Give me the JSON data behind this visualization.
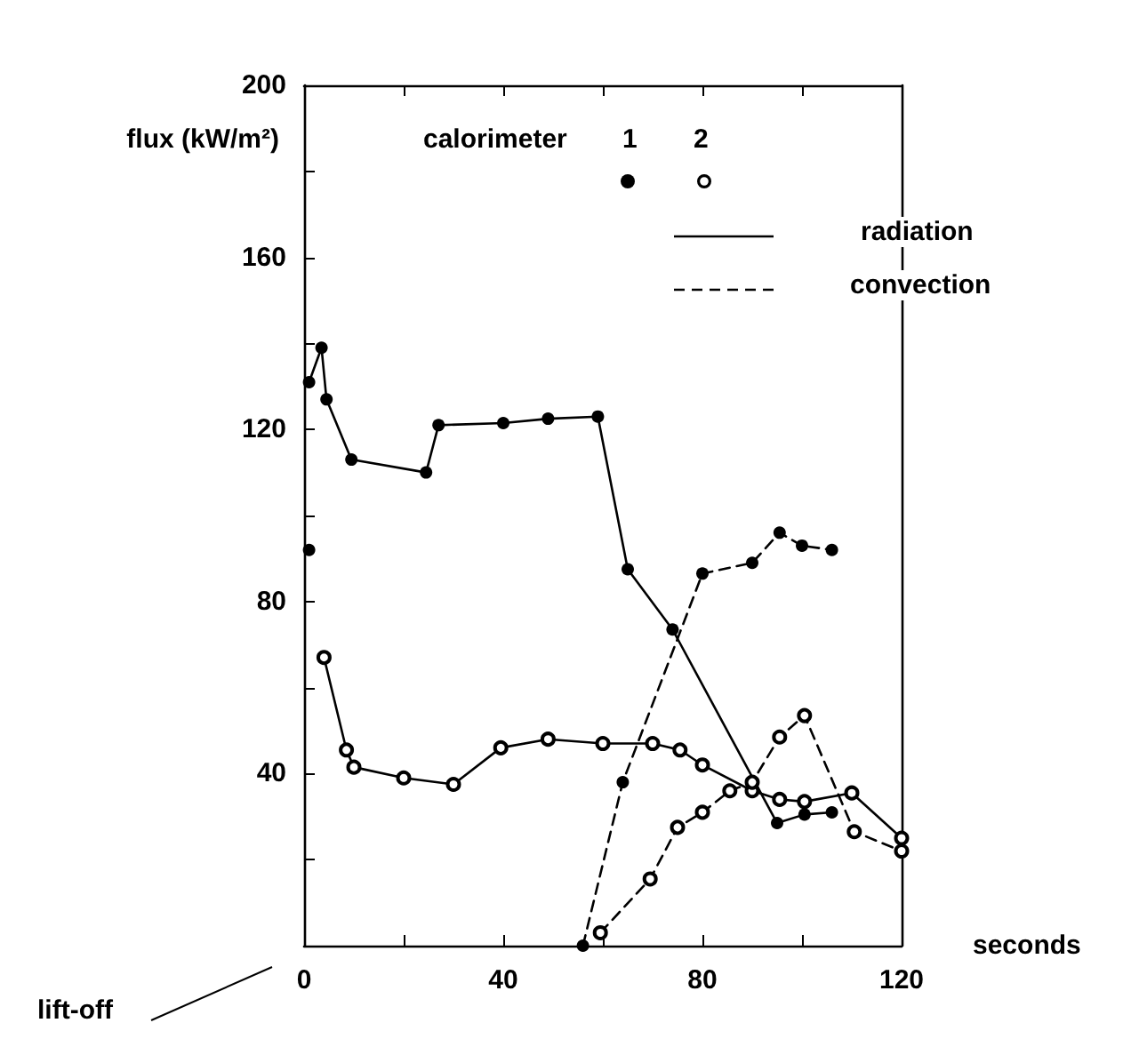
{
  "chart_data": {
    "type": "line",
    "xlabel": "seconds",
    "ylabel": "flux (kW/m²)",
    "legend_title": "calorimeter",
    "xlim": [
      0,
      120
    ],
    "ylim": [
      0,
      200
    ],
    "xticks": [
      0,
      {
        "value": 20,
        "label": null
      },
      40,
      {
        "value": 60,
        "label": null
      },
      80,
      {
        "value": 100,
        "label": null
      },
      120
    ],
    "yticks": [
      {
        "value": 20,
        "label": null
      },
      40,
      {
        "value": 60,
        "label": null
      },
      80,
      {
        "value": 100,
        "label": null
      },
      120,
      {
        "value": 140,
        "label": null
      },
      160,
      {
        "value": 180,
        "label": null
      },
      200
    ],
    "marker": "circle",
    "annotations": [
      "1",
      "2",
      "radiation",
      "convection",
      "lift-off"
    ],
    "series": [
      {
        "color": "#000000",
        "line_style": "solid",
        "x": [
          1,
          3.5,
          4.5,
          9.5,
          24.5,
          27,
          40,
          49,
          59,
          65,
          74,
          95,
          100.5,
          106
        ],
        "values": [
          131,
          139,
          127,
          113,
          110,
          121,
          121.5,
          122.5,
          123,
          87.5,
          73.5,
          28.5,
          30.5,
          31
        ]
      },
      {
        "color": "#000000",
        "line_style": "dashed",
        "x": [
          1,
          30,
          56,
          64,
          80,
          90,
          95.5,
          100,
          106
        ],
        "values": [
          92,
          null,
          0,
          38,
          86.5,
          89,
          96,
          93,
          92
        ]
      },
      {
        "color": "#000000",
        "line_style": "solid",
        "x": [
          4,
          8.5,
          10,
          20,
          30,
          39.5,
          49,
          60,
          70,
          75.5,
          80,
          90,
          95.5,
          100.5,
          110,
          120
        ],
        "values": [
          67,
          45.5,
          41.5,
          39,
          37.5,
          46,
          48,
          47,
          47,
          45.5,
          42,
          36,
          34,
          33.5,
          35.5,
          25
        ]
      },
      {
        "color": "#000000",
        "line_style": "dashed",
        "x": [
          59.5,
          69.5,
          75,
          80,
          85.5,
          90,
          95.5,
          100.5,
          110.5,
          120
        ],
        "values": [
          3,
          15.5,
          27.5,
          31,
          36,
          38,
          48.5,
          53.5,
          26.5,
          22
        ]
      }
    ]
  }
}
